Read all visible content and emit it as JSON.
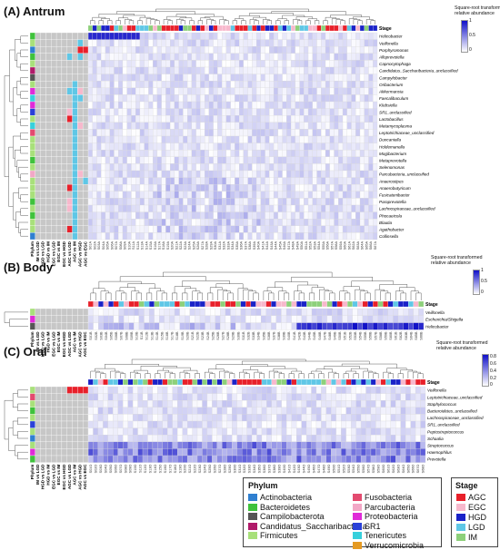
{
  "panels": [
    {
      "id": "antrum",
      "title": "(A) Antrum",
      "stage_label": "Stage",
      "scale": {
        "title": "Square-root transformed\nrelative abundance",
        "ticks": [
          "1",
          "0.5",
          "0"
        ]
      },
      "comparisons": [
        "Phylum",
        "IM vs LGD",
        "HGD vs LGD",
        "HGD vs IM",
        "EGC vs LGD",
        "EGC vs IM",
        "EGC vs HGD",
        "AGC vs LGD",
        "AGC vs IM",
        "AGC vs HGD",
        "AGC vs EGC"
      ],
      "taxa": [
        "Helicobacter",
        "Veillonella",
        "Porphyromonas",
        "Alloprevotella",
        "Capnocytophaga",
        "Candidatus_Saccharibacteria_unclassified",
        "Campylobacter",
        "Oribacterium",
        "Akkermansia",
        "Faecalibaculum",
        "Klebsiella",
        "SR1_unclassified",
        "Lactobacillus",
        "Metamycoplasma",
        "Leptotrichiaceae_unclassified",
        "Duncaniella",
        "Holdemanella",
        "Mogibacterium",
        "Metaprevotella",
        "Selenomonas",
        "Parcubacteria_unclassified",
        "Anaerostipes",
        "Anaerobutyricum",
        "Fusicatenibacter",
        "Paraprevotella",
        "Lachnospiraceae_unclassified",
        "Phocaeicola",
        "Blautia",
        "Agathobacter",
        "Collinsella"
      ],
      "samples": [
        "S01A",
        "S02A",
        "S03A",
        "S04A",
        "S05A",
        "S06A",
        "S07A",
        "S08A",
        "S09A",
        "S10A",
        "S11A",
        "S12A",
        "S13A",
        "S14A",
        "S15A",
        "S16A",
        "S17A",
        "S18A",
        "S19A",
        "S20A",
        "S21A",
        "S22A",
        "S23A",
        "S24A",
        "S25A",
        "S26A",
        "S27A",
        "S28A",
        "S29A",
        "S30A",
        "S31A",
        "S32A",
        "S33A",
        "S34A",
        "S35A",
        "S36A",
        "S37A",
        "S38A",
        "S39A",
        "S40A",
        "S41A",
        "S42A",
        "S43A",
        "S44A",
        "S45A",
        "S46A",
        "S47A",
        "S48A",
        "S49A",
        "S50A",
        "S51A",
        "S52A",
        "S53A",
        "S54A",
        "S55A",
        "S56A",
        "S57A",
        "S58A",
        "S59A",
        "S60A",
        "S61A",
        "S62A",
        "S63A",
        "S64A",
        "S65A",
        "S66A",
        "S67A"
      ]
    },
    {
      "id": "body",
      "title": "(B) Body",
      "stage_label": "Stage",
      "scale": {
        "title": "Square-root transformed\nrelative abundance",
        "ticks": [
          "1",
          "0.5",
          "0"
        ]
      },
      "comparisons": [
        "Phylum",
        "IM vs LGD",
        "HGD vs LGD",
        "HGD vs IM",
        "EGC vs LGD",
        "EGC vs IM",
        "EGC vs HGD",
        "AGC vs LGD",
        "AGC vs IM",
        "AGC vs HGD",
        "AGC vs EGC"
      ],
      "taxa": [
        "Veillonella",
        "Escherichia/Shigella",
        "Helicobacter"
      ],
      "samples": [
        "S01B",
        "S02B",
        "S03B",
        "S04B",
        "S05B",
        "S06B",
        "S07B",
        "S08B",
        "S09B",
        "S10B",
        "S11B",
        "S12B",
        "S13B",
        "S14B",
        "S15B",
        "S16B",
        "S17B",
        "S18B",
        "S19B",
        "S20B",
        "S21B",
        "S22B",
        "S23B",
        "S24B",
        "S25B",
        "S26B",
        "S27B",
        "S28B",
        "S29B",
        "S30B",
        "S31B",
        "S32B",
        "S33B",
        "S34B",
        "S35B",
        "S36B",
        "S37B",
        "S38B",
        "S39B",
        "S40B",
        "S41B",
        "S42B",
        "S43B",
        "S44B",
        "S45B",
        "S46B",
        "S47B",
        "S48B",
        "S49B",
        "S50B",
        "S51B",
        "S52B",
        "S53B",
        "S54B",
        "S55B",
        "S56B",
        "S57B",
        "S58B",
        "S59B",
        "S60B",
        "S61B",
        "S62B",
        "S63B",
        "S64B",
        "S65B",
        "S66B"
      ]
    },
    {
      "id": "oral",
      "title": "(C) Oral",
      "stage_label": "Stage",
      "scale": {
        "title": "Square-root transformed\nrelative abundance",
        "ticks": [
          "0.8",
          "0.6",
          "0.4",
          "0.2",
          "0"
        ]
      },
      "comparisons": [
        "Phylum",
        "IM vs LGD",
        "HGD vs LGD",
        "HGD vs IM",
        "EGC vs LGD",
        "EGC vs IM",
        "EGC vs HGD",
        "AGC vs LGD",
        "AGC vs IM",
        "AGC vs HGD",
        "AGC vs EGC"
      ],
      "taxa": [
        "Veillonella",
        "Leptotrichiaceae_unclassified",
        "Staphylococcus",
        "Bacteroidetes_unclassified",
        "Lachnospiraceae_unclassified",
        "SR1_unclassified",
        "Peptostreptococcus",
        "Schaalia",
        "Streptococcus",
        "Haemophilus",
        "Prevotella"
      ],
      "samples": [
        "S01O",
        "S02O",
        "S03O",
        "S04O",
        "S05O",
        "S06O",
        "S07O",
        "S08O",
        "S09O",
        "S10O",
        "S11O",
        "S12O",
        "S13O",
        "S14O",
        "S15O",
        "S16O",
        "S17O",
        "S18O",
        "S19O",
        "S20O",
        "S21O",
        "S22O",
        "S23O",
        "S24O",
        "S25O",
        "S26O",
        "S27O",
        "S28O",
        "S29O",
        "S30O",
        "S31O",
        "S32O",
        "S33O",
        "S34O",
        "S35O",
        "S36O",
        "S37O",
        "S38O",
        "S39O",
        "S40O",
        "S41O",
        "S42O",
        "S43O",
        "S44O",
        "S45O",
        "S46O",
        "S47O",
        "S48O",
        "S49O",
        "S50O",
        "S51O",
        "S52O",
        "S53O",
        "S54O",
        "S55O",
        "S56O",
        "S57O",
        "S58O",
        "S59O",
        "S60O",
        "S61O",
        "S62O",
        "S63O",
        "S64O",
        "S65O",
        "S66O",
        "S67O",
        "S68O"
      ]
    }
  ],
  "phylum_legend": {
    "title": "Phylum",
    "items": [
      {
        "label": "Actinobacteria",
        "color": "#2f7fd0"
      },
      {
        "label": "Bacteroidetes",
        "color": "#3fc23c"
      },
      {
        "label": "Campilobacterota",
        "color": "#555555"
      },
      {
        "label": "Candidatus_Saccharibacteria",
        "color": "#b01a6a"
      },
      {
        "label": "Firmicutes",
        "color": "#a8e07a"
      },
      {
        "label": "Fusobacteria",
        "color": "#e34a6f"
      },
      {
        "label": "Parcubacteria",
        "color": "#f2a7c6"
      },
      {
        "label": "Proteobacteria",
        "color": "#e02ad8"
      },
      {
        "label": "SR1",
        "color": "#2a40d8"
      },
      {
        "label": "Tenericutes",
        "color": "#37d0dc"
      },
      {
        "label": "Verrucomicrobia",
        "color": "#e59a22"
      }
    ]
  },
  "stage_legend": {
    "title": "Stage",
    "items": [
      {
        "label": "AGC",
        "color": "#e8202a"
      },
      {
        "label": "EGC",
        "color": "#f7b8cc"
      },
      {
        "label": "HGD",
        "color": "#1a22c8"
      },
      {
        "label": "LGD",
        "color": "#5fc7e6"
      },
      {
        "label": "IM",
        "color": "#8dd07a"
      }
    ]
  },
  "colors": {
    "heat_low": "#ffffff",
    "heat_high": "#1010c8",
    "not_significant": "#c7c7c7",
    "sig_red": "#e8202a",
    "sig_pink": "#f7b8cc",
    "sig_blue": "#1a22c8",
    "sig_cyan": "#5fc7e6"
  }
}
